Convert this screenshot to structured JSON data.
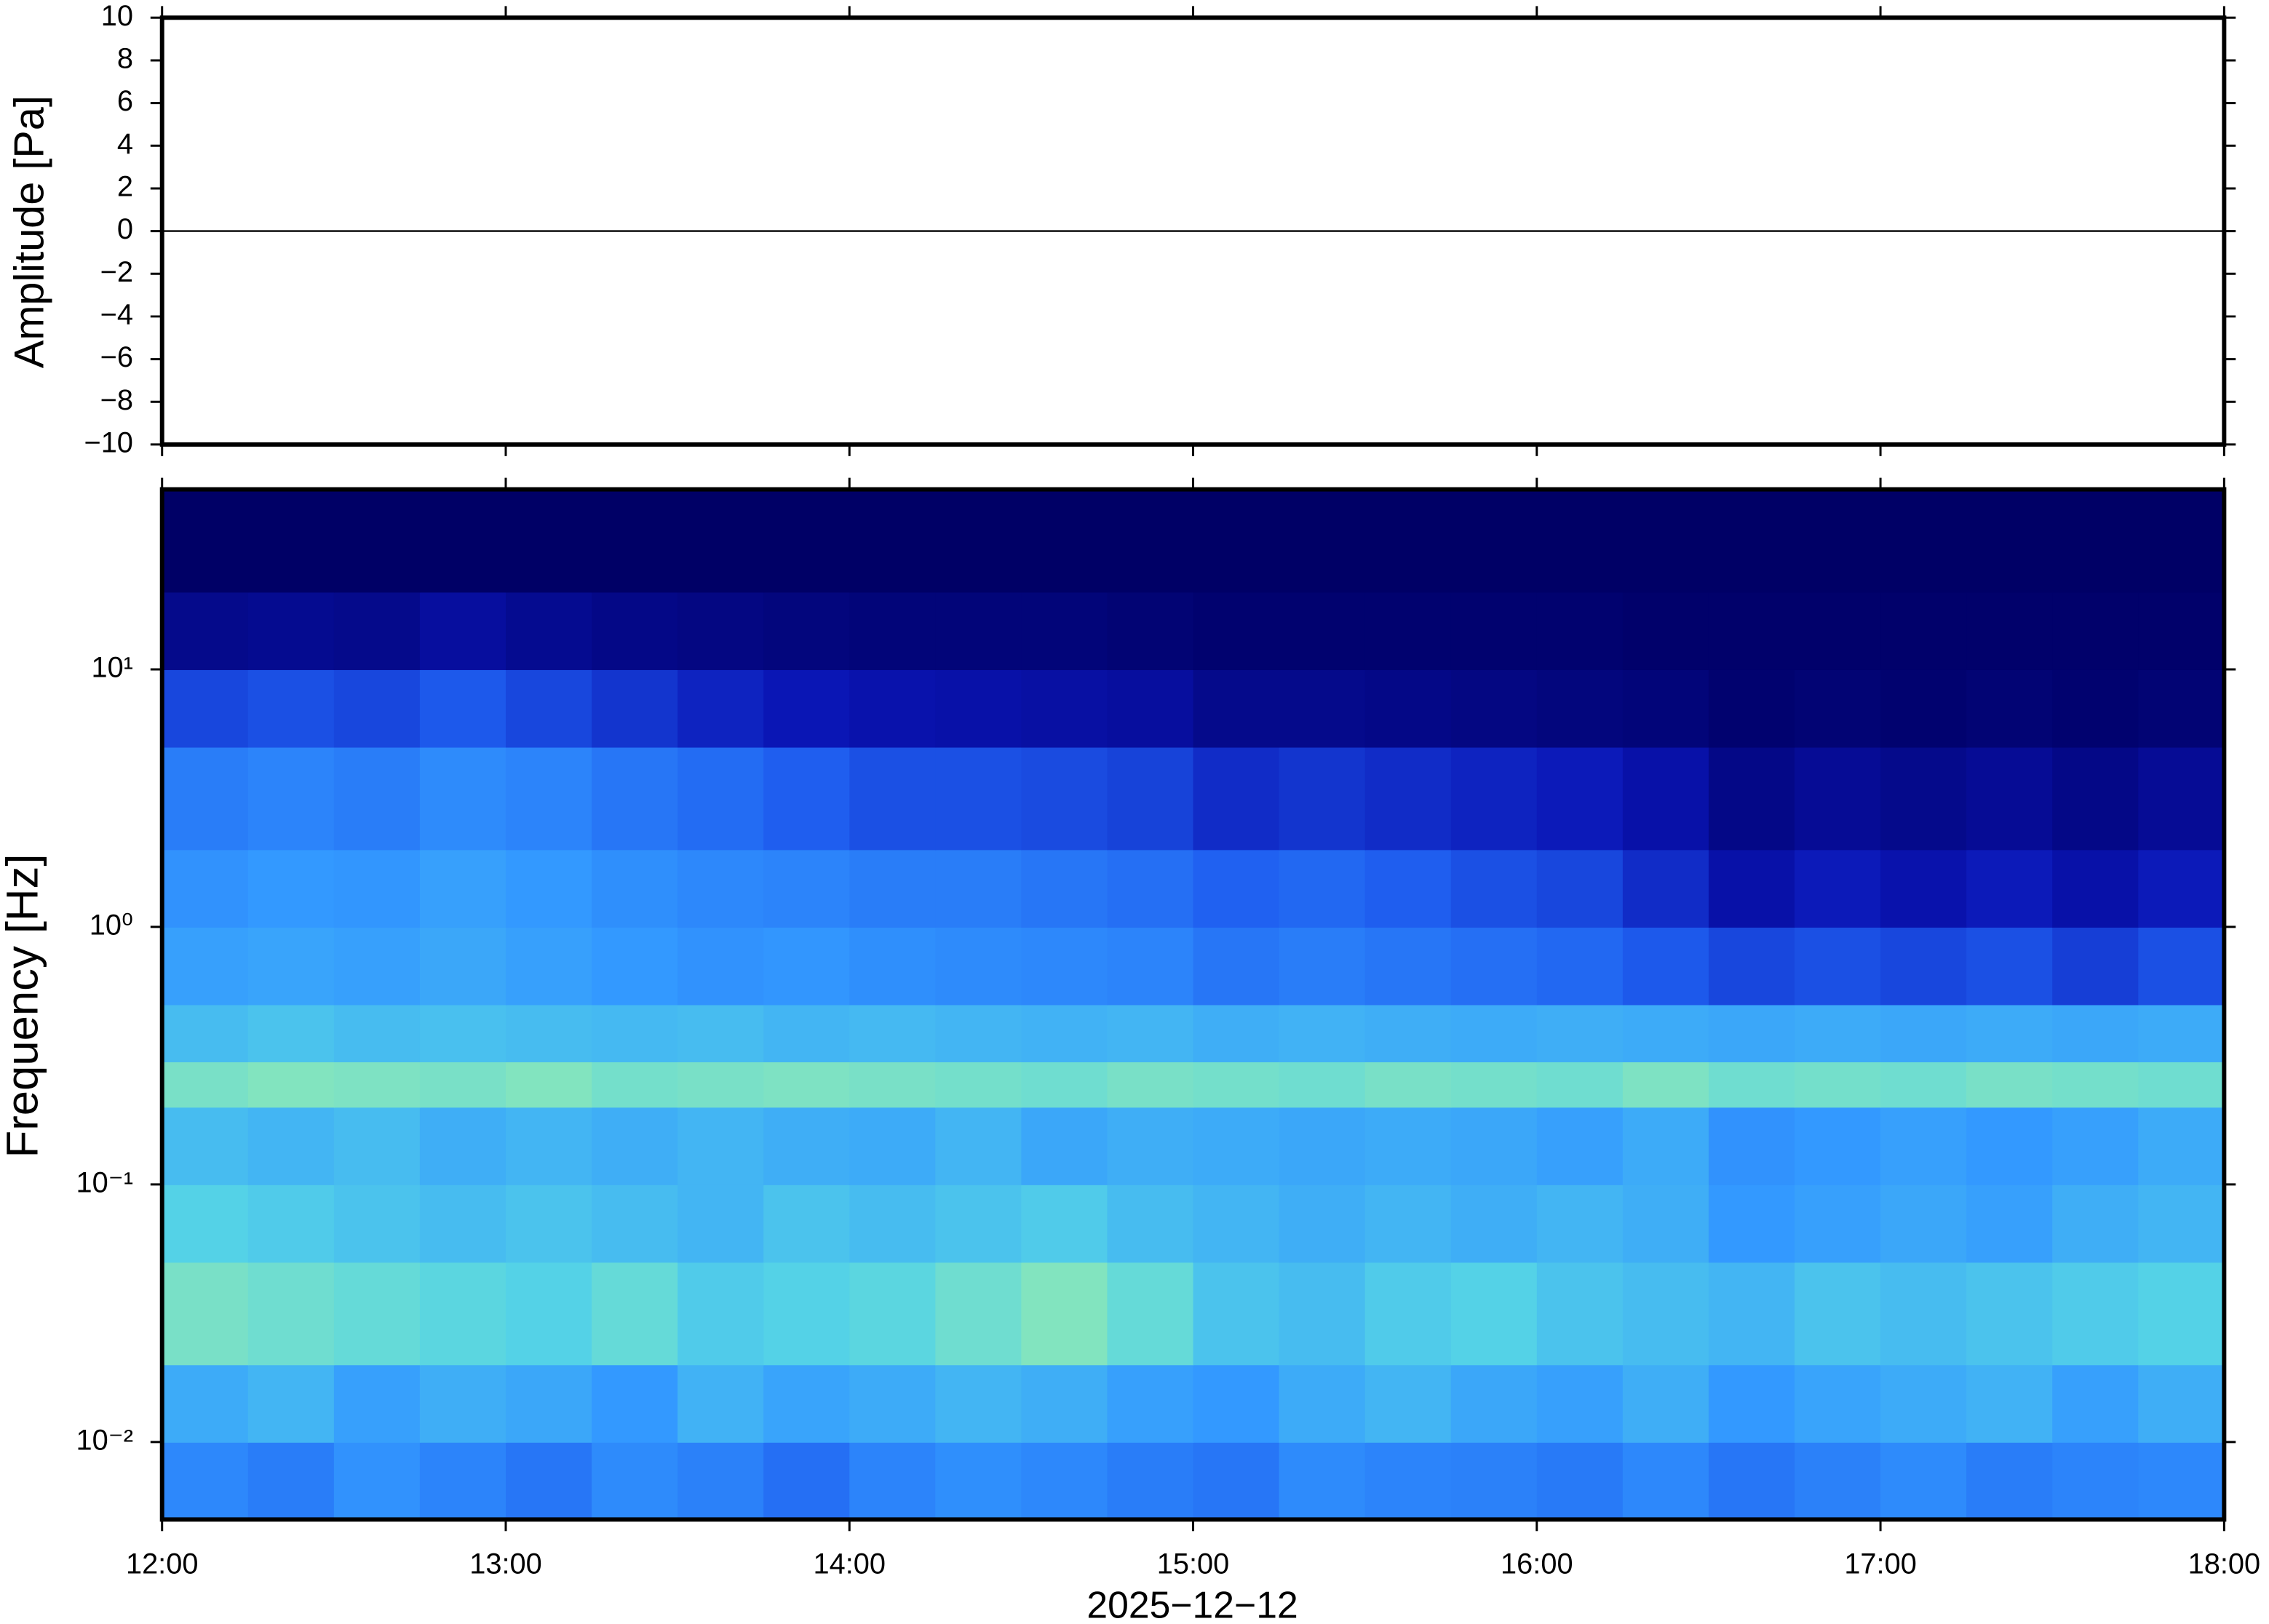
{
  "chart_data": [
    {
      "type": "line",
      "ylabel": "Amplitude [Pa]",
      "color": "#000000",
      "x": [
        "12:00",
        "12:30",
        "13:00",
        "13:30",
        "14:00",
        "14:30",
        "15:00",
        "15:30",
        "16:00",
        "16:30",
        "17:00",
        "17:30",
        "18:00"
      ],
      "values": [
        0,
        0,
        0,
        0,
        0,
        0,
        0,
        0,
        0,
        0,
        0,
        0,
        0
      ],
      "xlim": [
        "12:00",
        "18:00"
      ],
      "ylim": [
        -10,
        10
      ],
      "yticks": [
        {
          "value": -10,
          "label": "−10"
        },
        {
          "value": -8,
          "label": "−8"
        },
        {
          "value": -6,
          "label": "−6"
        },
        {
          "value": -4,
          "label": "−4"
        },
        {
          "value": -2,
          "label": "−2"
        },
        0,
        2,
        4,
        6,
        8,
        10
      ]
    },
    {
      "type": "heatmap",
      "ylabel": "Frequency [Hz]",
      "xlabel": "2025−12−12",
      "log_y": true,
      "xlim": [
        "12:00",
        "18:00"
      ],
      "xticks": [
        "12:00",
        "13:00",
        "14:00",
        "15:00",
        "16:00",
        "17:00",
        "18:00"
      ],
      "ylim": [
        0.005,
        50
      ],
      "yticks": [
        {
          "value": 0.01,
          "label": "10⁻²"
        },
        {
          "value": 0.1,
          "label": "10⁻¹"
        },
        {
          "value": 1,
          "label": "10⁰"
        },
        {
          "value": 10,
          "label": "10¹"
        }
      ],
      "x_edges": [
        "12:00",
        "12:15",
        "12:30",
        "12:45",
        "13:00",
        "13:15",
        "13:30",
        "13:45",
        "14:00",
        "14:15",
        "14:30",
        "14:45",
        "15:00",
        "15:15",
        "15:30",
        "15:45",
        "16:00",
        "16:15",
        "16:30",
        "16:45",
        "17:00",
        "17:15",
        "17:30",
        "17:45",
        "18:00"
      ],
      "y_edges": [
        0.005,
        0.01,
        0.02,
        0.05,
        0.1,
        0.2,
        0.3,
        0.5,
        1,
        2,
        5,
        10,
        20,
        50
      ],
      "zlim": [
        0,
        1
      ],
      "colormap": [
        "#000066",
        "#0a14b4",
        "#1f5ff0",
        "#3399ff",
        "#55d4e6",
        "#a6f0a0",
        "#f0ff99"
      ],
      "z": [
        [
          0.45,
          0.42,
          0.48,
          0.44,
          0.4,
          0.46,
          0.43,
          0.38,
          0.44,
          0.47,
          0.45,
          0.42,
          0.4,
          0.46,
          0.44,
          0.43,
          0.41,
          0.45,
          0.4,
          0.43,
          0.46,
          0.42,
          0.44,
          0.45
        ],
        [
          0.55,
          0.58,
          0.52,
          0.56,
          0.54,
          0.5,
          0.57,
          0.53,
          0.55,
          0.58,
          0.56,
          0.52,
          0.5,
          0.55,
          0.58,
          0.54,
          0.52,
          0.56,
          0.5,
          0.53,
          0.55,
          0.57,
          0.52,
          0.56
        ],
        [
          0.74,
          0.72,
          0.7,
          0.68,
          0.66,
          0.7,
          0.64,
          0.66,
          0.68,
          0.72,
          0.76,
          0.7,
          0.62,
          0.6,
          0.64,
          0.66,
          0.62,
          0.6,
          0.58,
          0.62,
          0.6,
          0.62,
          0.64,
          0.66
        ],
        [
          0.66,
          0.64,
          0.62,
          0.6,
          0.62,
          0.6,
          0.58,
          0.62,
          0.6,
          0.62,
          0.64,
          0.6,
          0.58,
          0.56,
          0.58,
          0.56,
          0.58,
          0.56,
          0.5,
          0.52,
          0.54,
          0.52,
          0.56,
          0.58
        ],
        [
          0.6,
          0.58,
          0.6,
          0.56,
          0.58,
          0.56,
          0.58,
          0.56,
          0.55,
          0.58,
          0.54,
          0.56,
          0.55,
          0.54,
          0.55,
          0.54,
          0.52,
          0.55,
          0.48,
          0.5,
          0.52,
          0.5,
          0.52,
          0.55
        ],
        [
          0.74,
          0.76,
          0.75,
          0.74,
          0.76,
          0.73,
          0.74,
          0.75,
          0.74,
          0.73,
          0.72,
          0.74,
          0.73,
          0.72,
          0.74,
          0.73,
          0.72,
          0.75,
          0.72,
          0.73,
          0.72,
          0.74,
          0.73,
          0.72
        ],
        [
          0.6,
          0.62,
          0.6,
          0.61,
          0.6,
          0.59,
          0.6,
          0.58,
          0.59,
          0.58,
          0.57,
          0.58,
          0.56,
          0.57,
          0.56,
          0.55,
          0.56,
          0.55,
          0.54,
          0.55,
          0.54,
          0.55,
          0.54,
          0.55
        ],
        [
          0.52,
          0.53,
          0.52,
          0.54,
          0.52,
          0.5,
          0.48,
          0.49,
          0.47,
          0.46,
          0.45,
          0.44,
          0.4,
          0.42,
          0.4,
          0.38,
          0.36,
          0.32,
          0.28,
          0.3,
          0.28,
          0.3,
          0.26,
          0.3
        ],
        [
          0.48,
          0.5,
          0.49,
          0.52,
          0.5,
          0.47,
          0.45,
          0.44,
          0.42,
          0.42,
          0.4,
          0.38,
          0.34,
          0.36,
          0.33,
          0.3,
          0.28,
          0.22,
          0.14,
          0.18,
          0.15,
          0.18,
          0.14,
          0.18
        ],
        [
          0.42,
          0.44,
          0.42,
          0.46,
          0.44,
          0.4,
          0.37,
          0.33,
          0.3,
          0.3,
          0.29,
          0.27,
          0.22,
          0.24,
          0.22,
          0.2,
          0.18,
          0.14,
          0.07,
          0.1,
          0.08,
          0.1,
          0.07,
          0.1
        ],
        [
          0.28,
          0.3,
          0.28,
          0.32,
          0.28,
          0.24,
          0.2,
          0.17,
          0.15,
          0.14,
          0.13,
          0.12,
          0.08,
          0.08,
          0.07,
          0.06,
          0.05,
          0.04,
          0.02,
          0.03,
          0.02,
          0.03,
          0.02,
          0.03
        ],
        [
          0.08,
          0.09,
          0.08,
          0.12,
          0.09,
          0.07,
          0.06,
          0.05,
          0.04,
          0.04,
          0.04,
          0.03,
          0.02,
          0.02,
          0.02,
          0.02,
          0.02,
          0.01,
          0.01,
          0.01,
          0.01,
          0.01,
          0.01,
          0.01
        ],
        [
          0,
          0,
          0,
          0,
          0,
          0,
          0,
          0,
          0,
          0,
          0,
          0,
          0,
          0,
          0,
          0,
          0,
          0,
          0,
          0,
          0,
          0,
          0,
          0
        ]
      ]
    }
  ]
}
